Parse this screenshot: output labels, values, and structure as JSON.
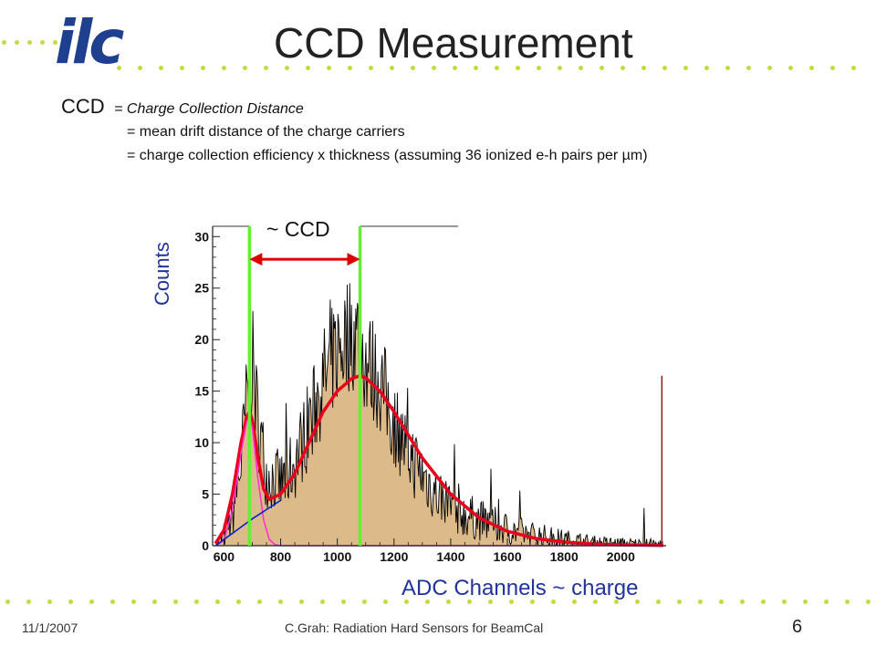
{
  "slide": {
    "logo_text": "ilc",
    "title": "CCD Measurement",
    "definition": {
      "term": "CCD",
      "expansion": "= Charge Collection Distance",
      "line2": "= mean drift distance of the charge carriers",
      "line3": "= charge collection efficiency x thickness (assuming 36 ionized e-h pairs per µm)"
    },
    "annotation": "~ CCD",
    "footer_date": "11/1/2007",
    "footer_center": "C.Grah: Radiation Hard Sensors for BeamCal",
    "page_number": "6",
    "colors": {
      "logo": "#1f3f8f",
      "dots": "#c8d840",
      "axis_titles": "#22339a",
      "histogram_fill": "#ddba8a",
      "histogram_line": "#000000",
      "fit_total": "#e8001c",
      "fit_pedestal": "#ff33cc",
      "fit_background": "#0022cc",
      "marker_lines": "#66ee33",
      "arrow": "#dd0000"
    }
  },
  "chart_data": {
    "type": "histogram",
    "xlabel": "ADC Channels ~ charge",
    "ylabel": "Counts",
    "xlim": [
      560,
      2160
    ],
    "ylim": [
      0,
      31
    ],
    "x_ticks": [
      600,
      800,
      1000,
      1200,
      1400,
      1600,
      1800,
      2000
    ],
    "y_ticks": [
      0,
      5,
      10,
      15,
      20,
      25,
      30
    ],
    "histogram_envelope": {
      "x": [
        570,
        600,
        630,
        660,
        680,
        700,
        720,
        750,
        800,
        850,
        900,
        950,
        1000,
        1050,
        1080,
        1100,
        1150,
        1200,
        1250,
        1300,
        1350,
        1400,
        1450,
        1500,
        1600,
        1700,
        1800,
        1900,
        2000,
        2100,
        2150
      ],
      "y": [
        0,
        1,
        3,
        8,
        14,
        18,
        12,
        7,
        6,
        8,
        12,
        16,
        19,
        21,
        20,
        18,
        16,
        12,
        9,
        7,
        5,
        4,
        3,
        2.5,
        1.6,
        1,
        0.6,
        0.3,
        0.2,
        0.1,
        0
      ]
    },
    "fits": [
      {
        "name": "total fit",
        "color": "#e8001c",
        "x": [
          570,
          600,
          630,
          660,
          680,
          690,
          700,
          720,
          740,
          760,
          800,
          850,
          900,
          950,
          1000,
          1050,
          1080,
          1100,
          1150,
          1200,
          1300,
          1400,
          1500,
          1600,
          1700,
          1800,
          1900,
          2000,
          2100,
          2150
        ],
        "y": [
          0.2,
          1.5,
          5,
          10,
          12.5,
          13,
          12.2,
          8.5,
          5.5,
          4.5,
          5,
          7,
          10,
          13,
          15,
          16.2,
          16.5,
          16.3,
          15,
          13,
          8.5,
          5,
          2.7,
          1.4,
          0.7,
          0.35,
          0.17,
          0.08,
          0.04,
          0.02
        ]
      },
      {
        "name": "pedestal",
        "color": "#ff33cc",
        "x": [
          570,
          600,
          630,
          660,
          680,
          690,
          700,
          720,
          740,
          760,
          780,
          800,
          850,
          2150
        ],
        "y": [
          0,
          0.5,
          3.5,
          9,
          12,
          12.5,
          11.5,
          6.5,
          2.5,
          0.6,
          0.1,
          0,
          0,
          0
        ]
      },
      {
        "name": "background",
        "color": "#0022cc",
        "x": [
          570,
          600,
          650,
          700,
          750,
          800
        ],
        "y": [
          0,
          0.6,
          1.6,
          2.6,
          3.5,
          4.4
        ]
      }
    ],
    "markers": {
      "vertical_lines_x": [
        690,
        1080
      ],
      "arrow": {
        "from_x": 690,
        "to_x": 1080,
        "y": 27.8,
        "label": "~ CCD"
      }
    },
    "overflow_bar": {
      "x": 2145,
      "height": 16.5
    }
  }
}
